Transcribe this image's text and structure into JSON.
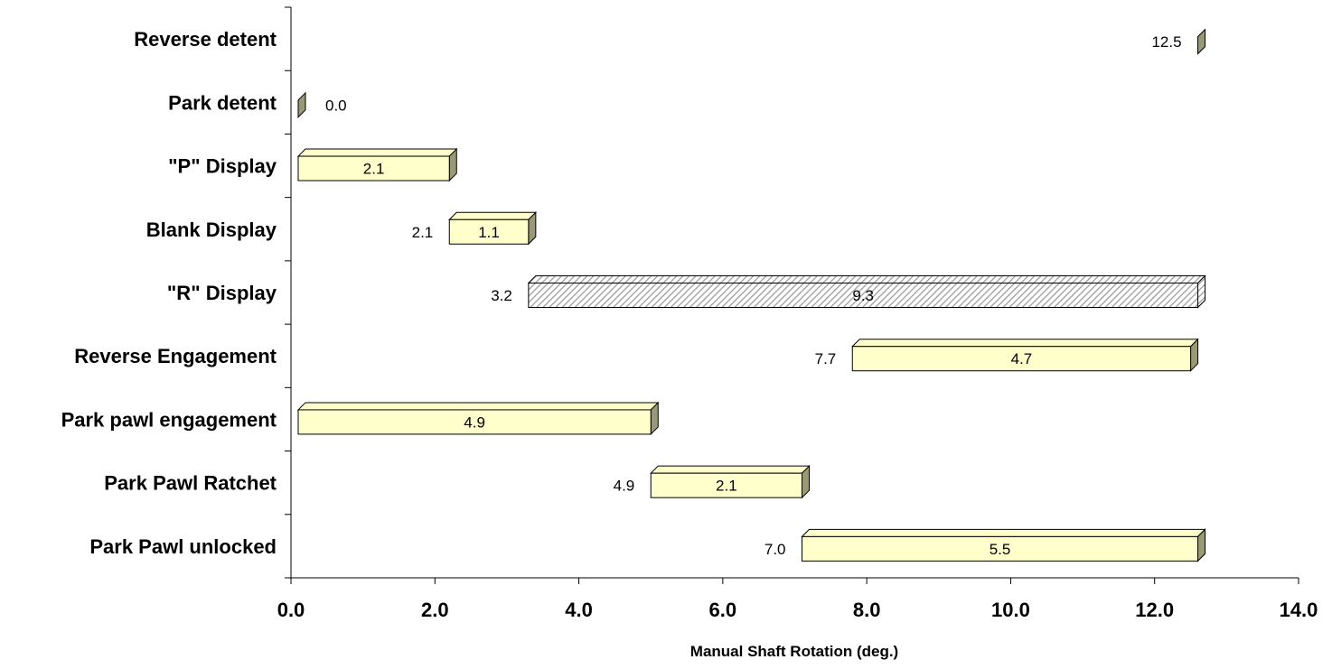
{
  "chart_data": {
    "type": "bar",
    "orientation": "horizontal",
    "stacked": true,
    "title": "",
    "xlabel": "Manual Shaft Rotation (deg.)",
    "ylabel": "",
    "xlim": [
      0,
      14
    ],
    "x_ticks": [
      "0.0",
      "2.0",
      "4.0",
      "6.0",
      "8.0",
      "10.0",
      "12.0",
      "14.0"
    ],
    "grid": false,
    "legend": "none",
    "categories": [
      "Reverse detent",
      "Park detent",
      "\"P\" Display",
      "Blank Display",
      "\"R\" Display",
      "Reverse Engagement",
      "Park pawl engagement",
      "Park Pawl Ratchet",
      "Park Pawl unlocked"
    ],
    "series": [
      {
        "role": "offset",
        "visible": false,
        "values": [
          12.5,
          0.0,
          null,
          2.1,
          3.2,
          7.7,
          null,
          4.9,
          7.0
        ],
        "labels": [
          "12.5",
          "0.0",
          "",
          "2.1",
          "3.2",
          "7.7",
          "",
          "4.9",
          "7.0"
        ]
      },
      {
        "role": "duration",
        "values": [
          0.0,
          0.0,
          2.1,
          1.1,
          9.3,
          4.7,
          4.9,
          2.1,
          5.5
        ],
        "labels": [
          "",
          "",
          "2.1",
          "1.1",
          "9.3",
          "4.7",
          "4.9",
          "2.1",
          "5.5"
        ],
        "styles": [
          "marker",
          "marker",
          "plain",
          "plain",
          "hatched",
          "plain",
          "plain",
          "plain",
          "plain"
        ]
      }
    ],
    "colors": {
      "bar_face": "#ffffcc",
      "bar_side": "#999977",
      "bar_top": "#ffffcc",
      "marker_face": "#999977",
      "hatch": "#999999",
      "outline": "#000000"
    }
  }
}
